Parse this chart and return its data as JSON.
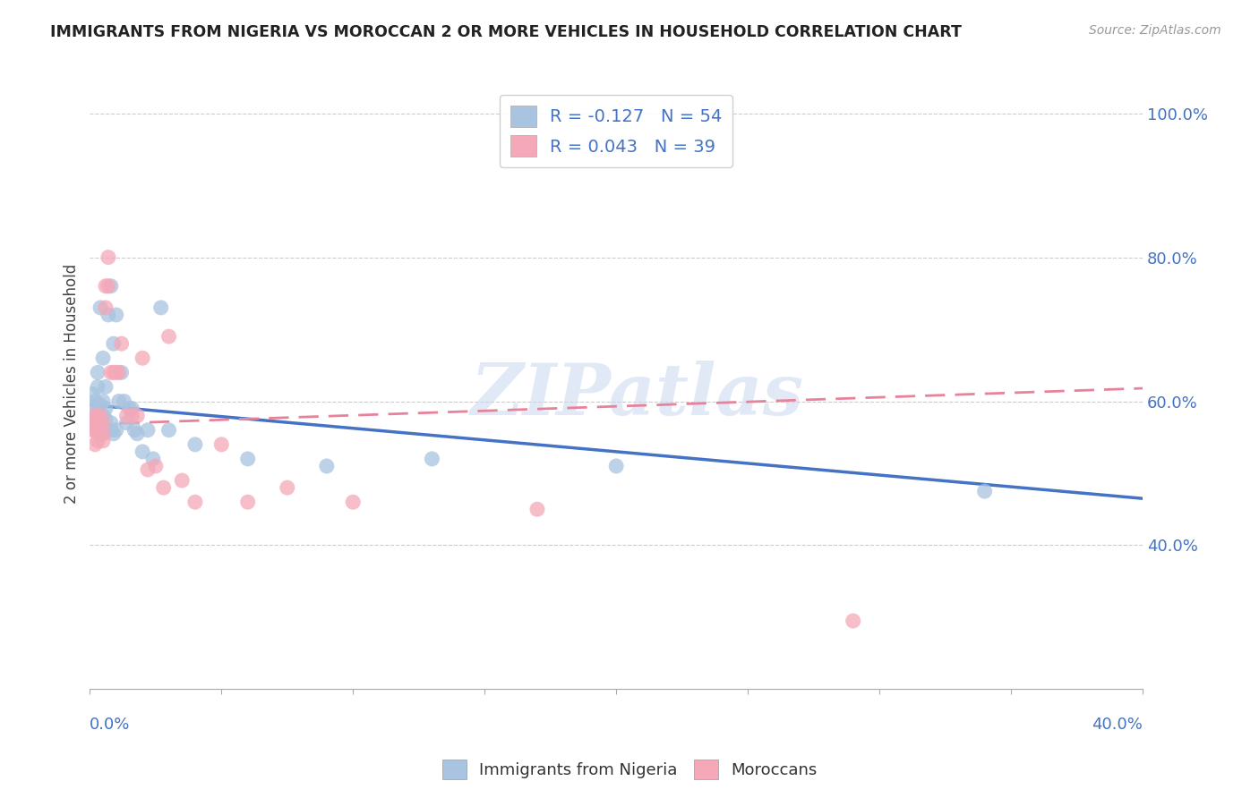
{
  "title": "IMMIGRANTS FROM NIGERIA VS MOROCCAN 2 OR MORE VEHICLES IN HOUSEHOLD CORRELATION CHART",
  "source": "Source: ZipAtlas.com",
  "ylabel": "2 or more Vehicles in Household",
  "ytick_labels": [
    "100.0%",
    "80.0%",
    "60.0%",
    "40.0%"
  ],
  "ytick_values": [
    1.0,
    0.8,
    0.6,
    0.4
  ],
  "xmin": 0.0,
  "xmax": 0.4,
  "ymin": 0.2,
  "ymax": 1.05,
  "legend_nigeria": "R = -0.127   N = 54",
  "legend_moroccan": "R = 0.043   N = 39",
  "color_nigeria": "#a8c4e0",
  "color_moroccan": "#f4a8b8",
  "color_line_nigeria": "#4472c4",
  "color_line_moroccan": "#e8829a",
  "color_axis_labels": "#4472c4",
  "watermark": "ZIPatlas",
  "nigeria_x": [
    0.001,
    0.001,
    0.001,
    0.002,
    0.002,
    0.002,
    0.002,
    0.003,
    0.003,
    0.003,
    0.003,
    0.003,
    0.004,
    0.004,
    0.004,
    0.004,
    0.004,
    0.005,
    0.005,
    0.005,
    0.005,
    0.005,
    0.006,
    0.006,
    0.006,
    0.006,
    0.007,
    0.007,
    0.008,
    0.008,
    0.008,
    0.009,
    0.009,
    0.01,
    0.01,
    0.011,
    0.012,
    0.013,
    0.014,
    0.015,
    0.016,
    0.017,
    0.018,
    0.02,
    0.022,
    0.024,
    0.027,
    0.03,
    0.04,
    0.06,
    0.09,
    0.13,
    0.2,
    0.34
  ],
  "nigeria_y": [
    0.575,
    0.59,
    0.61,
    0.56,
    0.57,
    0.58,
    0.6,
    0.56,
    0.58,
    0.595,
    0.62,
    0.64,
    0.555,
    0.565,
    0.575,
    0.595,
    0.73,
    0.555,
    0.565,
    0.58,
    0.6,
    0.66,
    0.56,
    0.575,
    0.59,
    0.62,
    0.56,
    0.72,
    0.56,
    0.57,
    0.76,
    0.555,
    0.68,
    0.56,
    0.72,
    0.6,
    0.64,
    0.6,
    0.57,
    0.59,
    0.59,
    0.56,
    0.555,
    0.53,
    0.56,
    0.52,
    0.73,
    0.56,
    0.54,
    0.52,
    0.51,
    0.52,
    0.51,
    0.475
  ],
  "moroccan_x": [
    0.001,
    0.001,
    0.002,
    0.002,
    0.002,
    0.003,
    0.003,
    0.003,
    0.004,
    0.004,
    0.004,
    0.005,
    0.005,
    0.005,
    0.006,
    0.006,
    0.007,
    0.007,
    0.008,
    0.009,
    0.01,
    0.011,
    0.012,
    0.014,
    0.016,
    0.018,
    0.02,
    0.022,
    0.025,
    0.028,
    0.03,
    0.035,
    0.04,
    0.05,
    0.06,
    0.075,
    0.1,
    0.17,
    0.29
  ],
  "moroccan_y": [
    0.56,
    0.58,
    0.54,
    0.56,
    0.57,
    0.545,
    0.56,
    0.58,
    0.555,
    0.565,
    0.58,
    0.545,
    0.555,
    0.57,
    0.73,
    0.76,
    0.8,
    0.76,
    0.64,
    0.64,
    0.64,
    0.64,
    0.68,
    0.58,
    0.58,
    0.58,
    0.66,
    0.505,
    0.51,
    0.48,
    0.69,
    0.49,
    0.46,
    0.54,
    0.46,
    0.48,
    0.46,
    0.45,
    0.295
  ],
  "nig_line_x": [
    0.0,
    0.4
  ],
  "nig_line_y": [
    0.595,
    0.465
  ],
  "mor_line_x": [
    0.0,
    0.4
  ],
  "mor_line_y": [
    0.568,
    0.618
  ]
}
